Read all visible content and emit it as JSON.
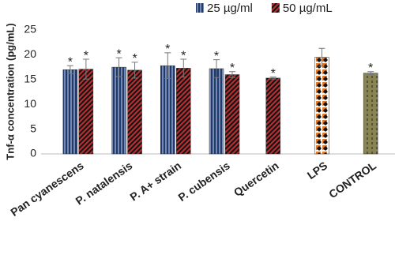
{
  "chart_data": {
    "type": "bar",
    "y_label": "Tnf-α concentration (pg/mL)",
    "categories": [
      "Pan cyanescens",
      "P. natalensis",
      "P. A+ strain",
      "P. cubensis",
      "Quercetin",
      "LPS",
      "CONTROL"
    ],
    "series": [
      {
        "name": "25 µg/ml",
        "color": "#1f3a6e",
        "hatch": "vertical",
        "values": [
          17.0,
          17.5,
          17.8,
          17.2,
          null,
          null,
          null
        ],
        "errors": [
          0.8,
          1.9,
          2.6,
          1.8,
          null,
          null,
          null
        ],
        "significance": [
          "*",
          "*",
          "*",
          "*",
          null,
          null,
          null
        ]
      },
      {
        "name": "50 µg/mL",
        "color": "#c0282d",
        "hatch": "diagonal",
        "values": [
          17.1,
          16.9,
          17.3,
          16.0,
          15.3,
          null,
          null
        ],
        "errors": [
          2.0,
          1.6,
          1.8,
          0.6,
          0.2,
          null,
          null
        ],
        "significance": [
          "*",
          "*",
          "*",
          "*",
          "*",
          null,
          null
        ]
      },
      {
        "color": "#e57c2a",
        "hatch": "diamond",
        "values": [
          null,
          null,
          null,
          null,
          null,
          19.5,
          null
        ],
        "errors": [
          null,
          null,
          null,
          null,
          null,
          1.8,
          null
        ],
        "significance": [
          null,
          null,
          null,
          null,
          null,
          null,
          null
        ]
      },
      {
        "color": "#8a8450",
        "hatch": "dashed",
        "values": [
          null,
          null,
          null,
          null,
          null,
          null,
          16.3
        ],
        "errors": [
          null,
          null,
          null,
          null,
          null,
          null,
          0.3
        ],
        "significance": [
          null,
          null,
          null,
          null,
          null,
          null,
          "*"
        ]
      }
    ],
    "ylim": [
      0,
      25
    ],
    "yticks": [
      0,
      5,
      10,
      15,
      20,
      25
    ],
    "grid": false,
    "legend": "top"
  }
}
